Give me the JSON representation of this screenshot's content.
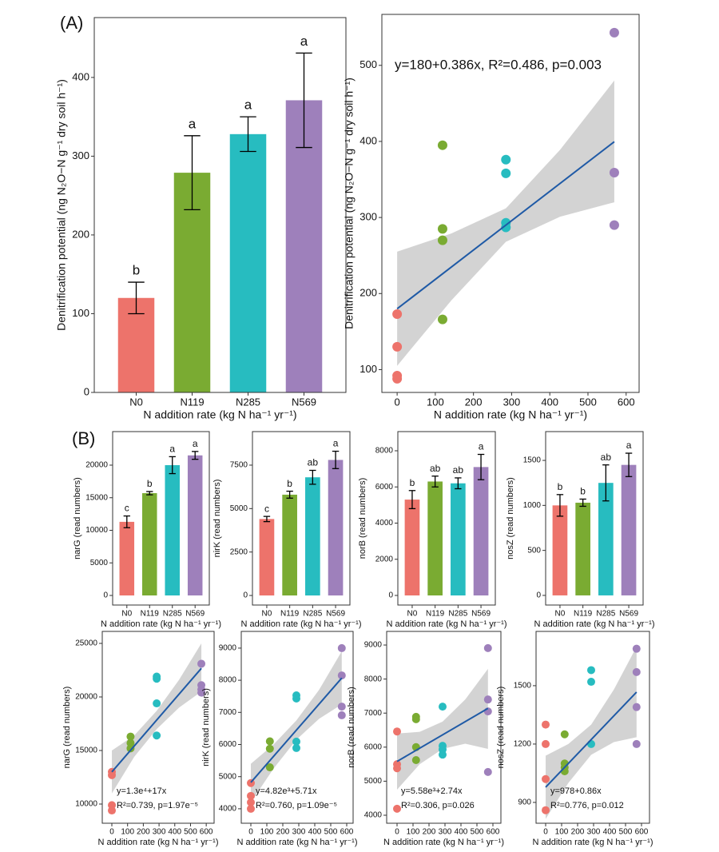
{
  "panel_labels": [
    "(A)",
    "(B)"
  ],
  "chart_data": [
    {
      "type": "bar",
      "categories": [
        "N0",
        "N119",
        "N285",
        "N569"
      ],
      "values": [
        120,
        279,
        328,
        371
      ],
      "errors": [
        20,
        47,
        22,
        60
      ],
      "labels": [
        "b",
        "a",
        "a",
        "a"
      ],
      "colors": [
        "#ED736B",
        "#7AAB32",
        "#27BCC0",
        "#9E80BB"
      ],
      "ylim": [
        0,
        476
      ],
      "yticks": [
        0,
        100,
        200,
        300,
        400
      ],
      "x_label": "N addition rate (kg N ha⁻¹ yr⁻¹)",
      "y_label": "Denitrification potential (ng N₂O−N g⁻¹ dry soil h⁻¹)"
    },
    {
      "type": "scatter",
      "series": [
        {
          "color": "#ED736B",
          "x": [
            0,
            0,
            0,
            0
          ],
          "values": [
            173,
            130,
            92,
            88
          ]
        },
        {
          "color": "#7AAB32",
          "x": [
            119,
            119,
            119,
            119
          ],
          "values": [
            395,
            285,
            270,
            166
          ]
        },
        {
          "color": "#27BCC0",
          "x": [
            285,
            285,
            285,
            285
          ],
          "values": [
            376,
            358,
            293,
            287
          ]
        },
        {
          "color": "#9E80BB",
          "x": [
            569,
            569,
            569
          ],
          "values": [
            543,
            359,
            290
          ]
        }
      ],
      "fit_x": [
        0,
        569
      ],
      "fit_values": [
        180,
        399.6
      ],
      "fit_color": "#1F5AA6",
      "ci_x": [
        0,
        142,
        285,
        427,
        569
      ],
      "ci_lower": [
        105,
        191,
        268,
        301,
        320
      ],
      "ci_upper": [
        255,
        279,
        312,
        389,
        480
      ],
      "annotation": [
        "y=180+0.386x, R²=0.486, p=0.003"
      ],
      "xlim": [
        -40,
        634
      ],
      "xticks": [
        0,
        100,
        200,
        300,
        400,
        500,
        600
      ],
      "ylim": [
        70,
        567
      ],
      "yticks": [
        100,
        200,
        300,
        400,
        500
      ],
      "x_label": "N addition rate (kg N ha⁻¹ yr⁻¹)",
      "y_label": "Denitrification potential (ng N₂O−N g⁻¹ dry soil h⁻¹)"
    },
    {
      "type": "bar",
      "categories": [
        "N0",
        "N119",
        "N285",
        "N569"
      ],
      "values": [
        11300,
        15700,
        20000,
        21500
      ],
      "errors": [
        900,
        250,
        1300,
        600
      ],
      "labels": [
        "c",
        "b",
        "a",
        "a"
      ],
      "colors": [
        "#ED736B",
        "#7AAB32",
        "#27BCC0",
        "#9E80BB"
      ],
      "ylim": [
        -1470,
        25150
      ],
      "yticks": [
        0,
        5000,
        10000,
        15000,
        20000
      ],
      "x_label": "N addition rate (kg N ha⁻¹ yr⁻¹)",
      "y_label": "narG (read numbers)"
    },
    {
      "type": "bar",
      "categories": [
        "N0",
        "N119",
        "N285",
        "N569"
      ],
      "values": [
        4400,
        5800,
        6800,
        7800
      ],
      "errors": [
        150,
        200,
        400,
        500
      ],
      "labels": [
        "c",
        "b",
        "ab",
        "a"
      ],
      "colors": [
        "#ED736B",
        "#7AAB32",
        "#27BCC0",
        "#9E80BB"
      ],
      "ylim": [
        -550,
        9430
      ],
      "yticks": [
        0,
        2500,
        5000,
        7500
      ],
      "x_label": "N addition rate (kg N ha⁻¹ yr⁻¹)",
      "y_label": "nirK (read numbers)"
    },
    {
      "type": "bar",
      "categories": [
        "N0",
        "N119",
        "N285",
        "N569"
      ],
      "values": [
        5300,
        6300,
        6200,
        7100
      ],
      "errors": [
        500,
        300,
        300,
        700
      ],
      "labels": [
        "b",
        "ab",
        "ab",
        "a"
      ],
      "colors": [
        "#ED736B",
        "#7AAB32",
        "#27BCC0",
        "#9E80BB"
      ],
      "ylim": [
        -530,
        9060
      ],
      "yticks": [
        0,
        2000,
        4000,
        6000,
        8000
      ],
      "x_label": "N addition rate (kg N ha⁻¹ yr⁻¹)",
      "y_label": "norB (read numbers)"
    },
    {
      "type": "bar",
      "categories": [
        "N0",
        "N119",
        "N285",
        "N569"
      ],
      "values": [
        1000,
        1030,
        1250,
        1450
      ],
      "errors": [
        120,
        40,
        200,
        130
      ],
      "labels": [
        "b",
        "b",
        "ab",
        "a"
      ],
      "colors": [
        "#ED736B",
        "#7AAB32",
        "#27BCC0",
        "#9E80BB"
      ],
      "ylim": [
        -107,
        1820
      ],
      "yticks": [
        0,
        500,
        1000,
        1500
      ],
      "x_label": "N addition rate (kg N ha⁻¹ yr⁻¹)",
      "y_label": "nosZ (read numbers)"
    },
    {
      "type": "scatter",
      "series": [
        {
          "color": "#ED736B",
          "x": [
            0,
            0,
            0,
            0
          ],
          "values": [
            13000,
            12700,
            9900,
            9400
          ]
        },
        {
          "color": "#7AAB32",
          "x": [
            119,
            119,
            119
          ],
          "values": [
            16300,
            15700,
            15200
          ]
        },
        {
          "color": "#27BCC0",
          "x": [
            285,
            285,
            285,
            285
          ],
          "values": [
            21900,
            21700,
            19400,
            16400
          ]
        },
        {
          "color": "#9E80BB",
          "x": [
            569,
            569,
            569,
            569
          ],
          "values": [
            23100,
            21100,
            20700,
            20400
          ]
        }
      ],
      "fit_x": [
        0,
        569
      ],
      "fit_values": [
        13000,
        22673
      ],
      "fit_color": "#1F5AA6",
      "ci_x": [
        0,
        142,
        285,
        427,
        569
      ],
      "ci_lower": [
        11000,
        14400,
        17000,
        19000,
        20500
      ],
      "ci_upper": [
        15000,
        16400,
        18700,
        21600,
        25000
      ],
      "annotation": [
        "y=1.3e⁴+17x",
        "R²=0.739, p=1.97e⁻⁵"
      ],
      "xlim": [
        -61,
        650
      ],
      "xticks": [
        0,
        100,
        200,
        300,
        400,
        500,
        600
      ],
      "ylim": [
        8210,
        26120
      ],
      "yticks": [
        10000,
        15000,
        20000,
        25000
      ],
      "x_label": "N addition rate (kg N ha⁻¹ yr⁻¹)",
      "y_label": "narG (read numbers)"
    },
    {
      "type": "scatter",
      "series": [
        {
          "color": "#ED736B",
          "x": [
            0,
            0,
            0,
            0
          ],
          "values": [
            4800,
            4400,
            4200,
            4000
          ]
        },
        {
          "color": "#7AAB32",
          "x": [
            119,
            119,
            119
          ],
          "values": [
            6100,
            5870,
            5290
          ]
        },
        {
          "color": "#27BCC0",
          "x": [
            285,
            285,
            285,
            285
          ],
          "values": [
            7530,
            7430,
            6090,
            5890
          ]
        },
        {
          "color": "#9E80BB",
          "x": [
            569,
            569,
            569,
            569
          ],
          "values": [
            9000,
            8150,
            7180,
            6910
          ]
        }
      ],
      "fit_x": [
        0,
        569
      ],
      "fit_values": [
        4820,
        8069
      ],
      "fit_color": "#1F5AA6",
      "ci_x": [
        0,
        142,
        285,
        427,
        569
      ],
      "ci_lower": [
        4200,
        5250,
        6150,
        6800,
        7250
      ],
      "ci_upper": [
        5400,
        6000,
        6750,
        7700,
        8900
      ],
      "annotation": [
        "y=4.82e³+5.71x",
        "R²=0.760, p=1.09e⁻⁵"
      ],
      "xlim": [
        -60,
        640
      ],
      "xticks": [
        0,
        100,
        200,
        300,
        400,
        500,
        600
      ],
      "ylim": [
        3550,
        9520
      ],
      "yticks": [
        4000,
        5000,
        6000,
        7000,
        8000,
        9000
      ],
      "x_label": "N addition rate (kg N ha⁻¹ yr⁻¹)",
      "y_label": "nirK (read numbers)"
    },
    {
      "type": "scatter",
      "series": [
        {
          "color": "#ED736B",
          "x": [
            0,
            0,
            0,
            0
          ],
          "values": [
            6460,
            5500,
            5380,
            4190
          ]
        },
        {
          "color": "#7AAB32",
          "x": [
            119,
            119,
            119,
            119
          ],
          "values": [
            6890,
            6820,
            6000,
            5620
          ]
        },
        {
          "color": "#27BCC0",
          "x": [
            285,
            285,
            285,
            285
          ],
          "values": [
            7190,
            6040,
            5930,
            5780
          ]
        },
        {
          "color": "#9E80BB",
          "x": [
            569,
            569,
            569,
            569
          ],
          "values": [
            8910,
            7400,
            7050,
            5270
          ]
        }
      ],
      "fit_x": [
        0,
        569
      ],
      "fit_values": [
        5580,
        7139
      ],
      "fit_color": "#1F5AA6",
      "ci_x": [
        0,
        142,
        285,
        427,
        569
      ],
      "ci_lower": [
        4750,
        5500,
        5950,
        6100,
        5950
      ],
      "ci_upper": [
        6400,
        6450,
        6750,
        7400,
        8300
      ],
      "annotation": [
        "y=5.58e³+2.74x",
        "R²=0.306, p=0.026"
      ],
      "xlim": [
        -65,
        650
      ],
      "xticks": [
        0,
        100,
        200,
        300,
        400,
        500,
        600
      ],
      "ylim": [
        3765,
        9400
      ],
      "yticks": [
        4000,
        5000,
        6000,
        7000,
        8000,
        9000
      ],
      "x_label": "N addition rate (kg N ha⁻¹ yr⁻¹)",
      "y_label": "norB (read numbers)"
    },
    {
      "type": "scatter",
      "series": [
        {
          "color": "#ED736B",
          "x": [
            0,
            0,
            0,
            0
          ],
          "values": [
            1300,
            1200,
            1020,
            860
          ]
        },
        {
          "color": "#7AAB32",
          "x": [
            119,
            119,
            119,
            119
          ],
          "values": [
            1250,
            1100,
            1080,
            1060
          ]
        },
        {
          "color": "#27BCC0",
          "x": [
            285,
            285,
            285
          ],
          "values": [
            1580,
            1520,
            1200
          ]
        },
        {
          "color": "#9E80BB",
          "x": [
            569,
            569,
            569,
            569
          ],
          "values": [
            1690,
            1570,
            1390,
            1200
          ]
        }
      ],
      "fit_x": [
        0,
        569
      ],
      "fit_values": [
        978,
        1467
      ],
      "fit_color": "#1F5AA6",
      "ci_x": [
        0,
        142,
        285,
        427,
        569
      ],
      "ci_lower": [
        815,
        1000,
        1145,
        1210,
        1235
      ],
      "ci_upper": [
        1140,
        1200,
        1300,
        1480,
        1700
      ],
      "annotation": [
        "y=978+0.86x",
        "R²=0.776, p=0.012"
      ],
      "xlim": [
        -60,
        650
      ],
      "xticks": [
        0,
        100,
        200,
        300,
        400,
        500,
        600
      ],
      "ylim": [
        793,
        1779
      ],
      "yticks": [
        900,
        1200,
        1500
      ],
      "x_label": "N addition rate (kg N ha⁻¹ yr⁻¹)",
      "y_label": "nosZ (read numbers)"
    }
  ]
}
